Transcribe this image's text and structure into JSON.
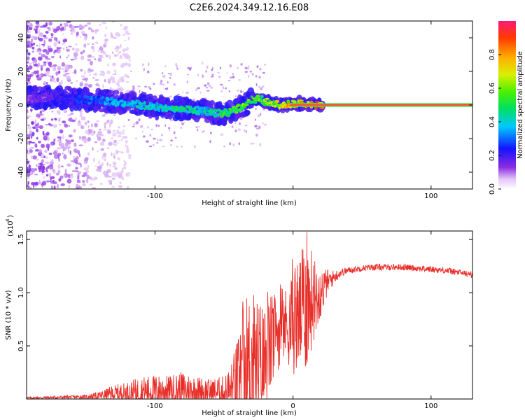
{
  "figure_title": "C2E6.2024.349.12.16.E08",
  "chart_data": [
    {
      "type": "heatmap",
      "name": "spectrogram",
      "title": "C2E6.2024.349.12.16.E08",
      "xlabel": "Height of straight line (km)",
      "ylabel": "Frequency (Hz)",
      "xlim": [
        -193,
        130
      ],
      "ylim": [
        -50,
        50
      ],
      "x_ticks": [
        -100,
        0,
        100
      ],
      "x_tick_labels": [
        "-100",
        "",
        "100"
      ],
      "y_ticks": [
        -40,
        -20,
        0,
        20,
        40
      ],
      "y_tick_labels": [
        "-40",
        "-20",
        "0",
        "20",
        "40"
      ],
      "colorbar": {
        "label": "Normalized spectral amplitude",
        "range": [
          0,
          1
        ],
        "ticks": [
          0,
          0.2,
          0.4,
          0.6,
          0.8
        ],
        "tick_labels": [
          "0.0",
          "0.2",
          "0.4",
          "0.6",
          "0.8"
        ]
      },
      "ridge": {
        "x": [
          -190,
          -175,
          -160,
          -150,
          -140,
          -130,
          -120,
          -110,
          -100,
          -90,
          -80,
          -70,
          -60,
          -55,
          -50,
          -45,
          -40,
          -35,
          -30,
          -25,
          -20,
          -15,
          -10,
          -5,
          0,
          5,
          10,
          15,
          20,
          130
        ],
        "frequency": [
          4,
          5,
          4,
          3,
          3,
          2,
          1,
          0,
          -1,
          -2,
          -2,
          -3,
          -4,
          -5,
          -5,
          -4,
          -2,
          0,
          3,
          4,
          2,
          1,
          0,
          0,
          1,
          1,
          0,
          0,
          0,
          0
        ],
        "amplitude": [
          0.15,
          0.2,
          0.25,
          0.3,
          0.35,
          0.4,
          0.4,
          0.45,
          0.45,
          0.5,
          0.5,
          0.45,
          0.45,
          0.5,
          0.55,
          0.55,
          0.6,
          0.65,
          0.6,
          0.6,
          0.65,
          0.7,
          0.75,
          0.8,
          0.85,
          0.85,
          0.9,
          0.9,
          0.95,
          0.95
        ]
      }
    },
    {
      "type": "line",
      "name": "snr",
      "xlabel": "Height of straight line (km)",
      "ylabel": "SNR (10 * v/v)",
      "y_multiplier_label": "(x10",
      "y_multiplier_exponent": "4",
      "xlim": [
        -193,
        130
      ],
      "ylim": [
        0,
        1.58
      ],
      "x_ticks": [
        -100,
        0,
        100
      ],
      "x_tick_labels": [
        "-100",
        "0",
        "100"
      ],
      "y_ticks": [
        0.5,
        1.0,
        1.5
      ],
      "y_tick_labels": [
        "0.5",
        "1.0",
        "1.5"
      ],
      "color": "#e8302b",
      "envelope": {
        "x": [
          -193,
          -150,
          -140,
          -130,
          -120,
          -110,
          -100,
          -90,
          -80,
          -70,
          -60,
          -50,
          -45,
          -40,
          -35,
          -30,
          -25,
          -20,
          -15,
          -10,
          -5,
          0,
          5,
          10,
          15,
          20,
          25,
          30,
          35,
          40,
          50,
          60,
          70,
          80,
          90,
          100,
          110,
          120,
          130
        ],
        "base": [
          0.01,
          0.02,
          0.03,
          0.05,
          0.06,
          0.07,
          0.08,
          0.08,
          0.09,
          0.08,
          0.07,
          0.06,
          0.08,
          0.15,
          0.25,
          0.3,
          0.3,
          0.35,
          0.55,
          0.65,
          0.7,
          0.72,
          0.8,
          0.9,
          0.95,
          1.0,
          1.1,
          1.15,
          1.19,
          1.21,
          1.23,
          1.24,
          1.24,
          1.24,
          1.23,
          1.22,
          1.21,
          1.19,
          1.17
        ],
        "spread": [
          0.01,
          0.02,
          0.04,
          0.08,
          0.1,
          0.14,
          0.15,
          0.14,
          0.17,
          0.14,
          0.12,
          0.16,
          0.25,
          0.45,
          0.7,
          0.75,
          0.65,
          0.55,
          0.45,
          0.35,
          0.35,
          0.5,
          0.55,
          0.65,
          0.4,
          0.25,
          0.12,
          0.06,
          0.04,
          0.03,
          0.03,
          0.03,
          0.03,
          0.03,
          0.03,
          0.03,
          0.03,
          0.03,
          0.03
        ]
      },
      "peak": {
        "x": 10,
        "y": 1.57
      }
    }
  ]
}
